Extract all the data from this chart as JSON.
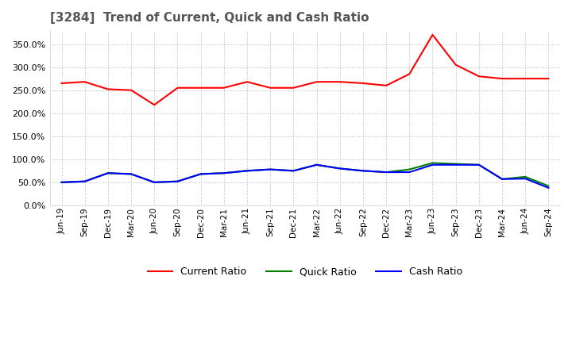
{
  "title": "[3284]  Trend of Current, Quick and Cash Ratio",
  "title_color": "#555555",
  "background_color": "#ffffff",
  "plot_bg_color": "#ffffff",
  "grid_color": "#aaaaaa",
  "grid_style": "dotted",
  "ylim": [
    0,
    3.8
  ],
  "yticks": [
    0.0,
    0.5,
    1.0,
    1.5,
    2.0,
    2.5,
    3.0,
    3.5
  ],
  "x_labels": [
    "Jun-19",
    "Sep-19",
    "Dec-19",
    "Mar-20",
    "Jun-20",
    "Sep-20",
    "Dec-20",
    "Mar-21",
    "Jun-21",
    "Sep-21",
    "Dec-21",
    "Mar-22",
    "Jun-22",
    "Sep-22",
    "Dec-22",
    "Mar-23",
    "Jun-23",
    "Sep-23",
    "Dec-23",
    "Mar-24",
    "Jun-24",
    "Sep-24"
  ],
  "current_ratio": [
    2.65,
    2.68,
    2.52,
    2.5,
    2.18,
    2.55,
    2.55,
    2.55,
    2.68,
    2.55,
    2.55,
    2.68,
    2.68,
    2.65,
    2.6,
    2.85,
    3.7,
    3.05,
    2.8,
    2.75,
    2.75,
    2.75
  ],
  "quick_ratio": [
    0.5,
    0.52,
    0.7,
    0.68,
    0.5,
    0.52,
    0.68,
    0.7,
    0.75,
    0.78,
    0.75,
    0.88,
    0.8,
    0.75,
    0.72,
    0.78,
    0.92,
    0.9,
    0.88,
    0.57,
    0.62,
    0.42
  ],
  "cash_ratio": [
    0.5,
    0.52,
    0.7,
    0.68,
    0.5,
    0.52,
    0.68,
    0.7,
    0.75,
    0.78,
    0.75,
    0.88,
    0.8,
    0.75,
    0.72,
    0.72,
    0.88,
    0.88,
    0.88,
    0.57,
    0.58,
    0.38
  ],
  "current_color": "#ff0000",
  "quick_color": "#008000",
  "cash_color": "#0000ff",
  "legend_labels": [
    "Current Ratio",
    "Quick Ratio",
    "Cash Ratio"
  ],
  "line_width": 1.5
}
